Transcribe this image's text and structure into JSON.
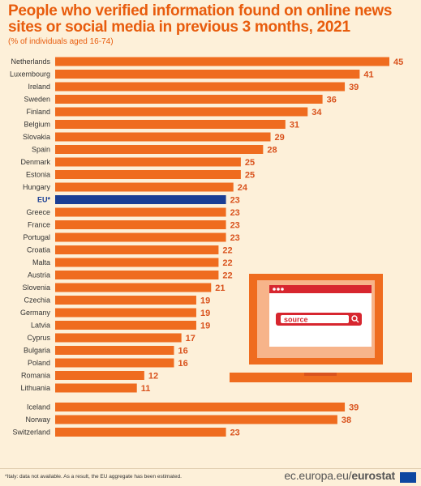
{
  "title": "People who verified information found on online news sites or social media in previous 3 months, 2021",
  "subtitle": "(% of individuals aged 16-74)",
  "footnote": "*Italy: data not available. As a result, the EU aggregate has been estimated.",
  "footer_site_prefix": "ec.europa.eu/",
  "footer_site_brand": "eurostat",
  "illustration_search_text": "source",
  "colors": {
    "bar": "#ef6c1f",
    "eu_bar": "#1a3e94",
    "value_text": "#d9531e",
    "background": "#fdf0d9",
    "title": "#e85c0d"
  },
  "chart_data": {
    "type": "bar",
    "orientation": "horizontal",
    "title": "People who verified information found on online news sites or social media in previous 3 months, 2021",
    "subtitle": "(% of individuals aged 16-74)",
    "xlabel": "",
    "ylabel": "",
    "xlim": [
      0,
      45
    ],
    "categories": [
      "Netherlands",
      "Luxembourg",
      "Ireland",
      "Sweden",
      "Finland",
      "Belgium",
      "Slovakia",
      "Spain",
      "Denmark",
      "Estonia",
      "Hungary",
      "EU*",
      "Greece",
      "France",
      "Portugal",
      "Croatia",
      "Malta",
      "Austria",
      "Slovenia",
      "Czechia",
      "Germany",
      "Latvia",
      "Cyprus",
      "Bulgaria",
      "Poland",
      "Romania",
      "Lithuania",
      "Iceland",
      "Norway",
      "Switzerland"
    ],
    "values": [
      45,
      41,
      39,
      36,
      34,
      31,
      29,
      28,
      25,
      25,
      24,
      23,
      23,
      23,
      23,
      22,
      22,
      22,
      21,
      19,
      19,
      19,
      17,
      16,
      16,
      12,
      11,
      39,
      38,
      23
    ],
    "highlight": "EU*",
    "group_break_before": "Iceland"
  }
}
